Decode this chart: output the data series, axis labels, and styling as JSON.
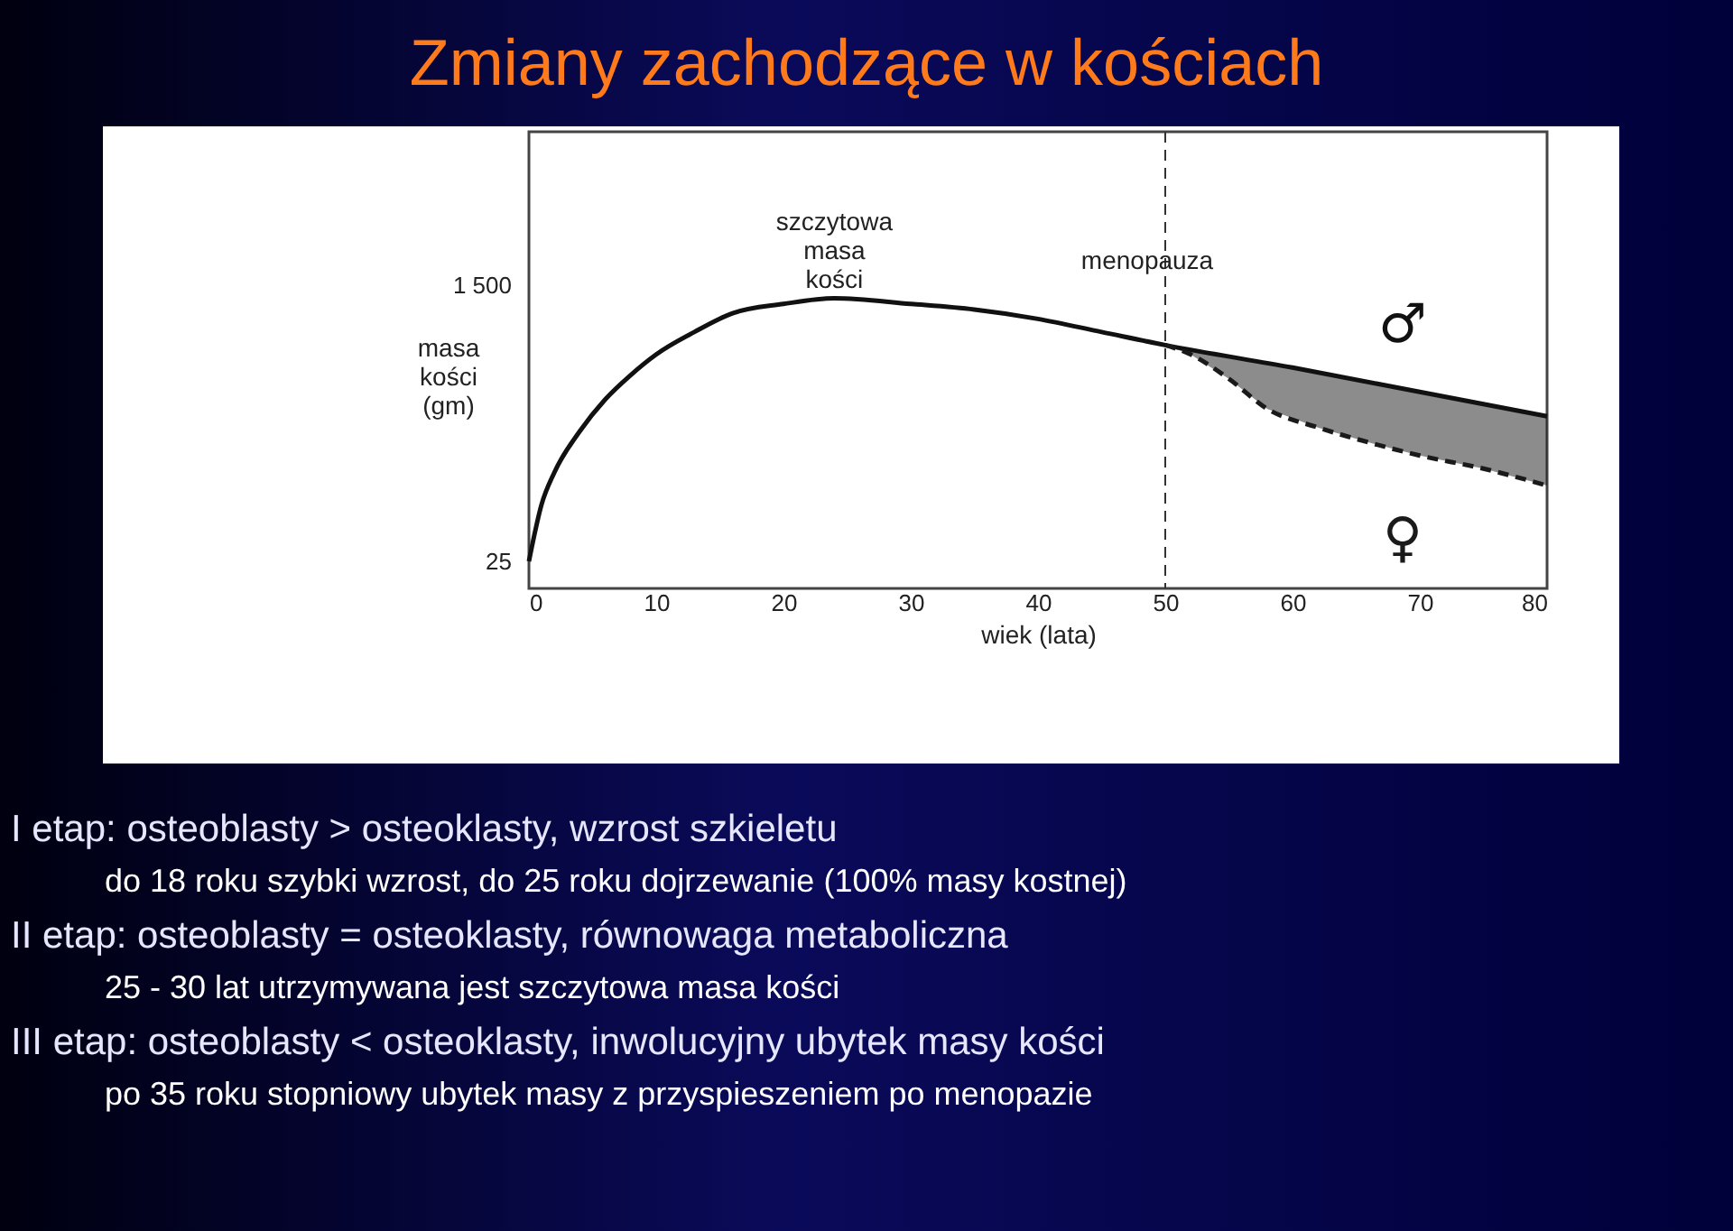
{
  "chart_data": {
    "type": "line",
    "title": "Zmiany zachodzące w kościach",
    "xlabel": "wiek (lata)",
    "ylabel": "masa kości (gm)",
    "xlim": [
      0,
      80
    ],
    "xticks": [
      0,
      10,
      20,
      30,
      40,
      50,
      60,
      70,
      80
    ],
    "ylim": [
      -120,
      2320
    ],
    "yticks": [
      {
        "value": 1500,
        "label": "1 500"
      },
      25
    ],
    "grid": false,
    "marker": "none",
    "series": [
      {
        "name": "♂",
        "color": "#111111",
        "line_style": "solid",
        "x": [
          0,
          1,
          2,
          4,
          6,
          8,
          10,
          13,
          16,
          20,
          24,
          30,
          35,
          40,
          45,
          50,
          60,
          70,
          80
        ],
        "values": [
          25,
          330,
          500,
          720,
          890,
          1020,
          1130,
          1250,
          1350,
          1400,
          1430,
          1400,
          1370,
          1320,
          1250,
          1180,
          1060,
          930,
          800
        ]
      },
      {
        "name": "♀",
        "color": "#1a1a1a",
        "line_style": "dashed",
        "x": [
          50,
          52,
          55,
          58,
          62,
          66,
          70,
          75,
          80
        ],
        "values": [
          1180,
          1130,
          1000,
          840,
          740,
          660,
          590,
          520,
          430
        ],
        "lower": [
          1180,
          1130,
          1000,
          840,
          740,
          660,
          590,
          520,
          430
        ],
        "upper": [
          1180,
          1150,
          1110,
          1080,
          1030,
          980,
          930,
          860,
          800
        ]
      }
    ],
    "ref_lines": [
      {
        "axis": "x",
        "value": 50,
        "label": "menopauza",
        "line_style": "dashed"
      }
    ],
    "annotations": [
      {
        "text": "szczytowa masa kości",
        "x": 24,
        "y": 1430
      },
      "I etap: osteoblasty > osteoklasty, wzrost szkieletu",
      "do 18 roku szybki wzrost, do 25 roku dojrzewanie (100% masy kostnej)",
      "II etap: osteoblasty = osteoklasty, równowaga metaboliczna",
      "25 - 30 lat utrzymywana jest szczytowa masa kości",
      "III etap: osteoblasty < osteoklasty, inwolucyjny ubytek masy kości",
      "po 35 roku stopniowy ubytek masy z przyspieszeniem po menopazie"
    ]
  }
}
